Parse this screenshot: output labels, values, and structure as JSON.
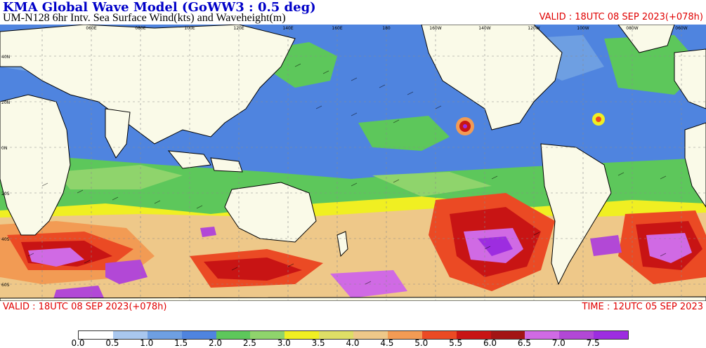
{
  "header": {
    "title": "KMA  Global Wave Model (GoWW3 : 0.5 deg)",
    "subtitle": "UM-N128  6hr Intv. Sea Surface Wind(kts) and Waveheight(m)",
    "valid_top": "VALID : 18UTC 08 SEP 2023(+078h)"
  },
  "footer": {
    "valid_bottom": "VALID : 18UTC 08 SEP 2023(+078h)",
    "time_bottom": "TIME : 12UTC 05 SEP 2023"
  },
  "map": {
    "lat_labels": [
      "40N",
      "20N",
      "0N",
      "20S",
      "40S",
      "60S"
    ],
    "lon_labels": [
      "060E",
      "080E",
      "100E",
      "120E",
      "140E",
      "160E",
      "180",
      "160W",
      "140W",
      "120W",
      "100W",
      "080W",
      "060W",
      "040W"
    ]
  },
  "legend": {
    "ticks": [
      "0.0",
      "0.5",
      "1.0",
      "1.5",
      "2.0",
      "2.5",
      "3.0",
      "3.5",
      "4.0",
      "4.5",
      "5.0",
      "5.5",
      "6.0",
      "6.5",
      "7.0",
      "7.5"
    ],
    "colors": [
      "#ffffff",
      "#a9c7ee",
      "#6e9fe2",
      "#4f84df",
      "#5dc75b",
      "#8fd46c",
      "#f0ef22",
      "#dede66",
      "#eec889",
      "#f29b54",
      "#eb4a24",
      "#c81414",
      "#a31515",
      "#d06ae4",
      "#b248d6",
      "#9d2de0"
    ],
    "color_names": [
      "white",
      "light-blue",
      "sky-blue",
      "blue",
      "green",
      "light-green",
      "yellow",
      "khaki",
      "tan",
      "orange",
      "red-orange",
      "red",
      "dark-red",
      "light-purple",
      "purple",
      "violet"
    ]
  }
}
